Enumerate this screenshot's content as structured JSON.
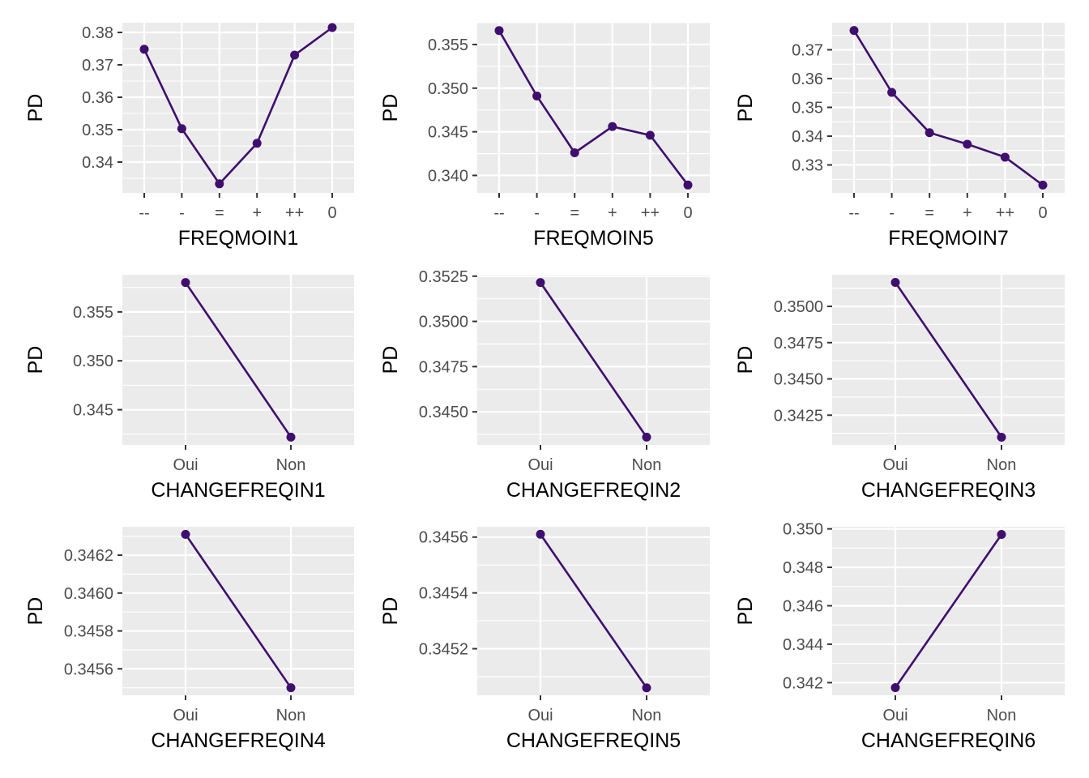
{
  "style": {
    "series_color": "#3f0f6e",
    "panel_background": "#ebebeb",
    "grid_color": "#ffffff"
  },
  "chart_data": [
    {
      "type": "line",
      "xlabel": "FREQMOIN1",
      "ylabel": "PD",
      "categories": [
        "--",
        "-",
        "=",
        "+",
        "++",
        "0"
      ],
      "values": [
        0.3748,
        0.3503,
        0.3333,
        0.3458,
        0.373,
        0.3815
      ],
      "ylim": [
        0.3305,
        0.383
      ],
      "yticks": [
        0.34,
        0.35,
        0.36,
        0.37,
        0.38
      ],
      "ytick_labels": [
        "0.34",
        "0.35",
        "0.36",
        "0.37",
        "0.38"
      ],
      "grid": true
    },
    {
      "type": "line",
      "xlabel": "FREQMOIN5",
      "ylabel": "PD",
      "categories": [
        "--",
        "-",
        "=",
        "+",
        "++",
        "0"
      ],
      "values": [
        0.3566,
        0.3491,
        0.3426,
        0.3456,
        0.3446,
        0.3389
      ],
      "ylim": [
        0.338,
        0.3575
      ],
      "yticks": [
        0.34,
        0.345,
        0.35,
        0.355
      ],
      "ytick_labels": [
        "0.340",
        "0.345",
        "0.350",
        "0.355"
      ],
      "grid": true
    },
    {
      "type": "line",
      "xlabel": "FREQMOIN7",
      "ylabel": "PD",
      "categories": [
        "--",
        "-",
        "=",
        "+",
        "++",
        "0"
      ],
      "values": [
        0.3767,
        0.3552,
        0.3412,
        0.3372,
        0.3327,
        0.323
      ],
      "ylim": [
        0.3203,
        0.3794
      ],
      "yticks": [
        0.33,
        0.34,
        0.35,
        0.36,
        0.37
      ],
      "ytick_labels": [
        "0.33",
        "0.34",
        "0.35",
        "0.36",
        "0.37"
      ],
      "grid": true
    },
    {
      "type": "line",
      "xlabel": "CHANGEFREQIN1",
      "ylabel": "PD",
      "categories": [
        "Oui",
        "Non"
      ],
      "values": [
        0.358,
        0.3422
      ],
      "ylim": [
        0.3414,
        0.3588
      ],
      "yticks": [
        0.345,
        0.35,
        0.355
      ],
      "ytick_labels": [
        "0.345",
        "0.350",
        "0.355"
      ],
      "grid": true
    },
    {
      "type": "line",
      "xlabel": "CHANGEFREQIN2",
      "ylabel": "PD",
      "categories": [
        "Oui",
        "Non"
      ],
      "values": [
        0.35215,
        0.3436
      ],
      "ylim": [
        0.34317,
        0.35258
      ],
      "yticks": [
        0.345,
        0.3475,
        0.35,
        0.3525
      ],
      "ytick_labels": [
        "0.3450",
        "0.3475",
        "0.3500",
        "0.3525"
      ],
      "grid": true
    },
    {
      "type": "line",
      "xlabel": "CHANGEFREQIN3",
      "ylabel": "PD",
      "categories": [
        "Oui",
        "Non"
      ],
      "values": [
        0.35165,
        0.34098
      ],
      "ylim": [
        0.34045,
        0.35218
      ],
      "yticks": [
        0.3425,
        0.345,
        0.3475,
        0.35
      ],
      "ytick_labels": [
        "0.3425",
        "0.3450",
        "0.3475",
        "0.3500"
      ],
      "grid": true
    },
    {
      "type": "line",
      "xlabel": "CHANGEFREQIN4",
      "ylabel": "PD",
      "categories": [
        "Oui",
        "Non"
      ],
      "values": [
        0.34631,
        0.3455
      ],
      "ylim": [
        0.34546,
        0.34635
      ],
      "yticks": [
        0.3456,
        0.3458,
        0.346,
        0.3462
      ],
      "ytick_labels": [
        "0.3456",
        "0.3458",
        "0.3460",
        "0.3462"
      ],
      "grid": true
    },
    {
      "type": "line",
      "xlabel": "CHANGEFREQIN5",
      "ylabel": "PD",
      "categories": [
        "Oui",
        "Non"
      ],
      "values": [
        0.34561,
        0.34506
      ],
      "ylim": [
        0.345033,
        0.345637
      ],
      "yticks": [
        0.3452,
        0.3454,
        0.3456
      ],
      "ytick_labels": [
        "0.3452",
        "0.3454",
        "0.3456"
      ],
      "grid": true
    },
    {
      "type": "line",
      "xlabel": "CHANGEFREQIN6",
      "ylabel": "PD",
      "categories": [
        "Oui",
        "Non"
      ],
      "values": [
        0.34174,
        0.34971
      ],
      "ylim": [
        0.34134,
        0.35011
      ],
      "yticks": [
        0.342,
        0.344,
        0.346,
        0.348,
        0.35
      ],
      "ytick_labels": [
        "0.342",
        "0.344",
        "0.346",
        "0.348",
        "0.350"
      ],
      "grid": true
    }
  ]
}
